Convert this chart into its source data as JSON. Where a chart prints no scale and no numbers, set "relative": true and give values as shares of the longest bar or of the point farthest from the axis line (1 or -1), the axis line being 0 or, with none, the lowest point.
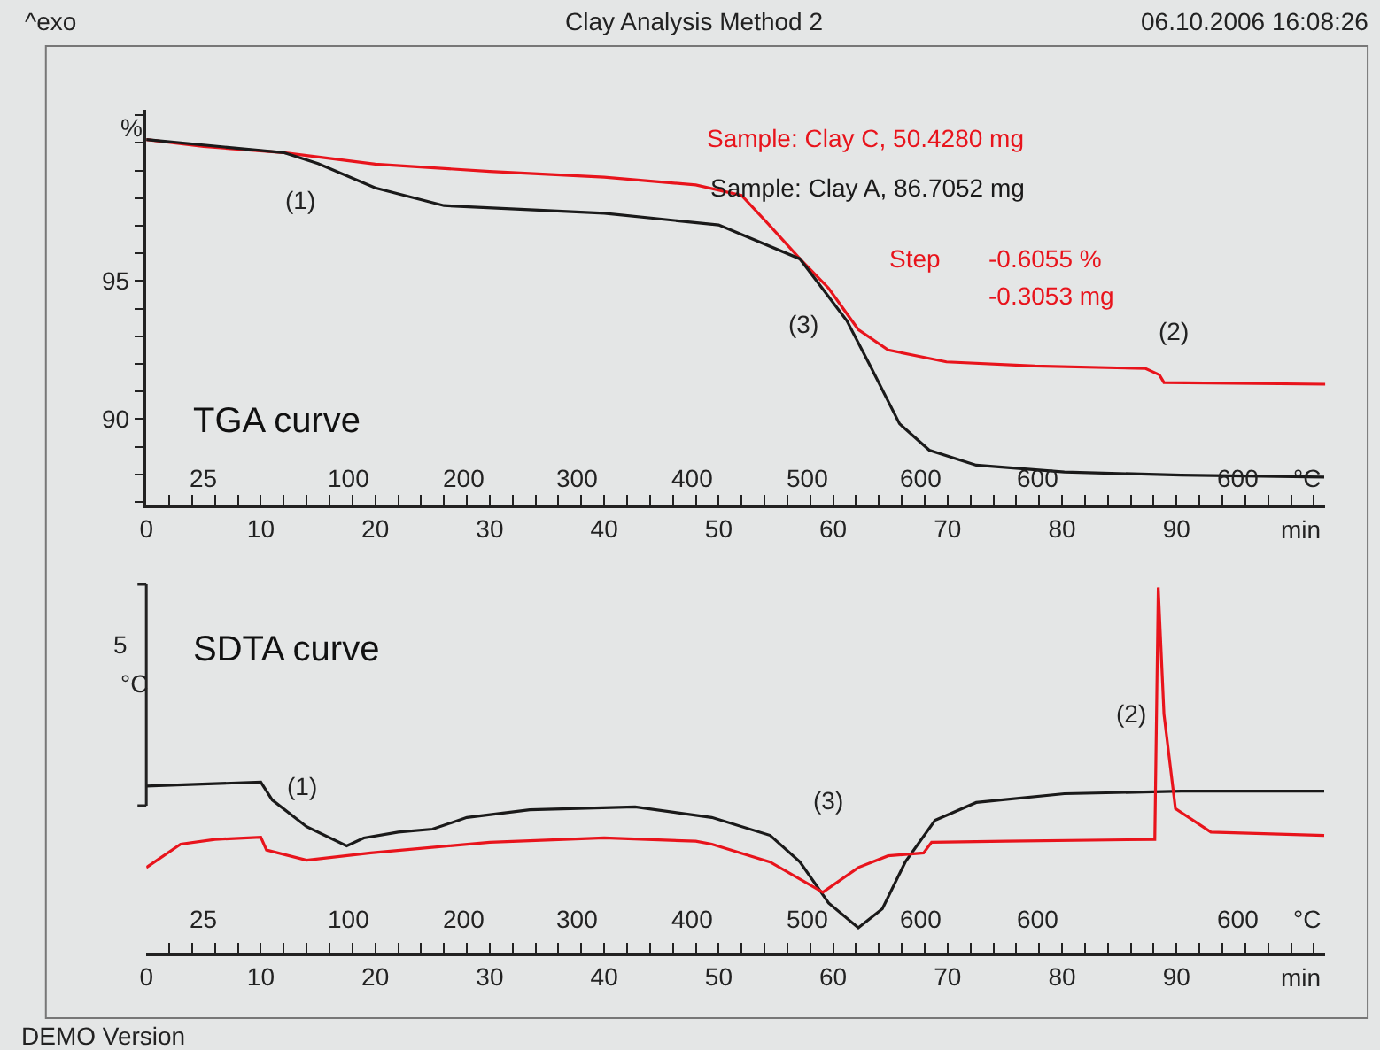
{
  "chart_data": [
    {
      "type": "line",
      "title": "Clay Analysis Method 2",
      "subtitle": "TGA curve",
      "xlabel": "min",
      "ylabel": "%",
      "legend": "top right",
      "grid": false,
      "marker": "none",
      "line_style": "solid",
      "series": [
        {
          "name": "Sample: Clay C, 50.4280 mg",
          "color": "#e8141c",
          "x": [
            0,
            5,
            12,
            20,
            30,
            40,
            48,
            52,
            54.5,
            57.1,
            59.6,
            62.2,
            64.8,
            69.9,
            77.6,
            87.3,
            88.5,
            88.9,
            103
          ],
          "values": [
            100.12,
            99.87,
            99.65,
            99.23,
            98.97,
            98.76,
            98.48,
            98.1,
            96.99,
            95.8,
            94.74,
            93.24,
            92.5,
            92.07,
            91.92,
            91.83,
            91.6,
            91.32,
            91.26
          ]
        },
        {
          "name": "Sample: Clay A, 86.7052 mg",
          "color": "#1a1a1a",
          "x": [
            0,
            12,
            15,
            20,
            26,
            40,
            50,
            57.1,
            61.2,
            63.2,
            65.8,
            68.4,
            72.5,
            80.2,
            90.4,
            102.9
          ],
          "values": [
            100.12,
            99.65,
            99.25,
            98.37,
            97.73,
            97.45,
            97.03,
            95.8,
            93.56,
            91.96,
            89.83,
            88.87,
            88.33,
            88.08,
            87.97,
            87.9
          ]
        }
      ],
      "xlim": [
        0,
        103
      ],
      "ylim": [
        86.9,
        101.2
      ],
      "xticks": [
        0,
        {
          "value": 2,
          "label": null
        },
        {
          "value": 4,
          "label": null
        },
        {
          "value": 6,
          "label": null
        },
        {
          "value": 8,
          "label": null
        },
        10,
        {
          "value": 12,
          "label": null
        },
        {
          "value": 14,
          "label": null
        },
        {
          "value": 16,
          "label": null
        },
        {
          "value": 18,
          "label": null
        },
        20,
        {
          "value": 22,
          "label": null
        },
        {
          "value": 24,
          "label": null
        },
        {
          "value": 26,
          "label": null
        },
        {
          "value": 28,
          "label": null
        },
        30,
        {
          "value": 32,
          "label": null
        },
        {
          "value": 34,
          "label": null
        },
        {
          "value": 36,
          "label": null
        },
        {
          "value": 38,
          "label": null
        },
        40,
        {
          "value": 42,
          "label": null
        },
        {
          "value": 44,
          "label": null
        },
        {
          "value": 46,
          "label": null
        },
        {
          "value": 48,
          "label": null
        },
        50,
        {
          "value": 52,
          "label": null
        },
        {
          "value": 54,
          "label": null
        },
        {
          "value": 56,
          "label": null
        },
        {
          "value": 58,
          "label": null
        },
        60,
        {
          "value": 62,
          "label": null
        },
        {
          "value": 64,
          "label": null
        },
        {
          "value": 66,
          "label": null
        },
        {
          "value": 68,
          "label": null
        },
        70,
        {
          "value": 72,
          "label": null
        },
        {
          "value": 74,
          "label": null
        },
        {
          "value": 76,
          "label": null
        },
        {
          "value": 78,
          "label": null
        },
        80,
        {
          "value": 82,
          "label": null
        },
        {
          "value": 84,
          "label": null
        },
        {
          "value": 86,
          "label": null
        },
        {
          "value": 88,
          "label": null
        },
        90,
        {
          "value": 92,
          "label": null
        },
        {
          "value": 94,
          "label": null
        },
        {
          "value": 96,
          "label": null
        },
        {
          "value": 98,
          "label": null
        },
        {
          "value": 100,
          "label": null
        },
        {
          "value": 102,
          "label": null
        }
      ],
      "yticks": [
        {
          "value": 87,
          "label": null
        },
        {
          "value": 88,
          "label": null
        },
        {
          "value": 89,
          "label": null
        },
        90,
        {
          "value": 91,
          "label": null
        },
        {
          "value": 92,
          "label": null
        },
        {
          "value": 93,
          "label": null
        },
        {
          "value": 94,
          "label": null
        },
        95,
        {
          "value": 96,
          "label": null
        },
        {
          "value": 97,
          "label": null
        },
        {
          "value": 98,
          "label": null
        },
        {
          "value": 99,
          "label": null
        },
        {
          "value": 100,
          "label": null
        },
        {
          "value": 101,
          "label": null
        }
      ],
      "annotations": [
        "^exo",
        "06.10.2006 16:08:26",
        "Step",
        "-0.6055 %",
        "-0.3053 mg",
        "(1)",
        "(3)",
        "(2)",
        "25",
        "100",
        "200",
        "300",
        "400",
        "500",
        "600",
        "600",
        "600",
        "°C"
      ]
    },
    {
      "type": "line",
      "title": "SDTA curve",
      "xlabel": "min",
      "ylabel": "°C",
      "relative": true,
      "grid": false,
      "marker": "none",
      "line_style": "solid",
      "series": [
        {
          "color": "#1a1a1a",
          "x": [
            0,
            10,
            11,
            14,
            17.5,
            19,
            22,
            25,
            28,
            33.5,
            42.7,
            49.4,
            54.5,
            57.1,
            59.6,
            62.2,
            64.3,
            66.3,
            68.9,
            72.5,
            80.2,
            90.4,
            102.9
          ],
          "values": [
            0.456,
            0.467,
            0.418,
            0.345,
            0.292,
            0.314,
            0.33,
            0.338,
            0.37,
            0.391,
            0.399,
            0.37,
            0.321,
            0.248,
            0.136,
            0.068,
            0.12,
            0.248,
            0.362,
            0.411,
            0.435,
            0.442,
            0.442
          ]
        },
        {
          "color": "#e8141c",
          "x": [
            0,
            3,
            6,
            10,
            10.5,
            14,
            19.6,
            30,
            40,
            48,
            49.4,
            54.5,
            59.1,
            62.2,
            64.8,
            67.9,
            68.6,
            75.1,
            88.1,
            88.4,
            88.9,
            89.9,
            93,
            102.9
          ],
          "values": [
            0.233,
            0.297,
            0.31,
            0.316,
            0.281,
            0.253,
            0.273,
            0.302,
            0.314,
            0.305,
            0.297,
            0.248,
            0.165,
            0.233,
            0.265,
            0.273,
            0.302,
            0.305,
            0.31,
            1,
            0.653,
            0.394,
            0.33,
            0.321
          ]
        }
      ],
      "xlim": [
        0,
        103
      ],
      "xticks": [
        0,
        {
          "value": 2,
          "label": null
        },
        {
          "value": 4,
          "label": null
        },
        {
          "value": 6,
          "label": null
        },
        {
          "value": 8,
          "label": null
        },
        10,
        {
          "value": 12,
          "label": null
        },
        {
          "value": 14,
          "label": null
        },
        {
          "value": 16,
          "label": null
        },
        {
          "value": 18,
          "label": null
        },
        20,
        {
          "value": 22,
          "label": null
        },
        {
          "value": 24,
          "label": null
        },
        {
          "value": 26,
          "label": null
        },
        {
          "value": 28,
          "label": null
        },
        30,
        {
          "value": 32,
          "label": null
        },
        {
          "value": 34,
          "label": null
        },
        {
          "value": 36,
          "label": null
        },
        {
          "value": 38,
          "label": null
        },
        40,
        {
          "value": 42,
          "label": null
        },
        {
          "value": 44,
          "label": null
        },
        {
          "value": 46,
          "label": null
        },
        {
          "value": 48,
          "label": null
        },
        50,
        {
          "value": 52,
          "label": null
        },
        {
          "value": 54,
          "label": null
        },
        {
          "value": 56,
          "label": null
        },
        {
          "value": 58,
          "label": null
        },
        60,
        {
          "value": 62,
          "label": null
        },
        {
          "value": 64,
          "label": null
        },
        {
          "value": 66,
          "label": null
        },
        {
          "value": 68,
          "label": null
        },
        70,
        {
          "value": 72,
          "label": null
        },
        {
          "value": 74,
          "label": null
        },
        {
          "value": 76,
          "label": null
        },
        {
          "value": 78,
          "label": null
        },
        80,
        {
          "value": 82,
          "label": null
        },
        {
          "value": 84,
          "label": null
        },
        {
          "value": 86,
          "label": null
        },
        {
          "value": 88,
          "label": null
        },
        90,
        {
          "value": 92,
          "label": null
        },
        {
          "value": 94,
          "label": null
        },
        {
          "value": 96,
          "label": null
        },
        {
          "value": 98,
          "label": null
        },
        {
          "value": 100,
          "label": null
        },
        {
          "value": 102,
          "label": null
        }
      ],
      "annotations": [
        "(1)",
        "(3)",
        "(2)",
        "25",
        "100",
        "200",
        "300",
        "400",
        "500",
        "600",
        "600",
        "600",
        "°C",
        "5",
        "DEMO Version"
      ]
    }
  ]
}
